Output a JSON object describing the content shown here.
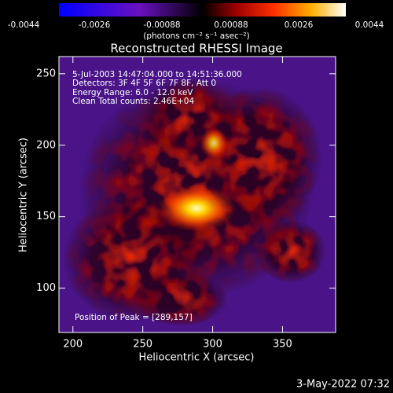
{
  "chart_data": {
    "type": "image",
    "title": "Reconstructed RHESSI Image",
    "xlabel": "Heliocentric X (arcsec)",
    "ylabel": "Heliocentric Y (arcsec)",
    "xlim": [
      190,
      388
    ],
    "xticks": [
      200,
      250,
      300,
      350
    ],
    "ylim": [
      69,
      262
    ],
    "yticks": [
      100,
      150,
      200,
      250
    ],
    "colorbar": {
      "lim": [
        -0.0044,
        0.0044
      ],
      "ticks": [
        -0.0044,
        -0.0026,
        -0.00088,
        0.00088,
        0.0026,
        0.0044
      ],
      "label": "(photons cm⁻² s⁻¹ asec⁻²)"
    },
    "annotations": [
      "5-Jul-2003 14:47:04.000 to 14:51:36.000",
      "Detectors: 3F 4F 5F 6F 7F 8F, Att 0",
      "Energy Range: 6.0 - 12.0 keV",
      "Clean     Total counts: 2.46E+04"
    ],
    "peak_label": "Position of Peak = [289,157]",
    "timestamp": "3-May-2022 07:32"
  }
}
